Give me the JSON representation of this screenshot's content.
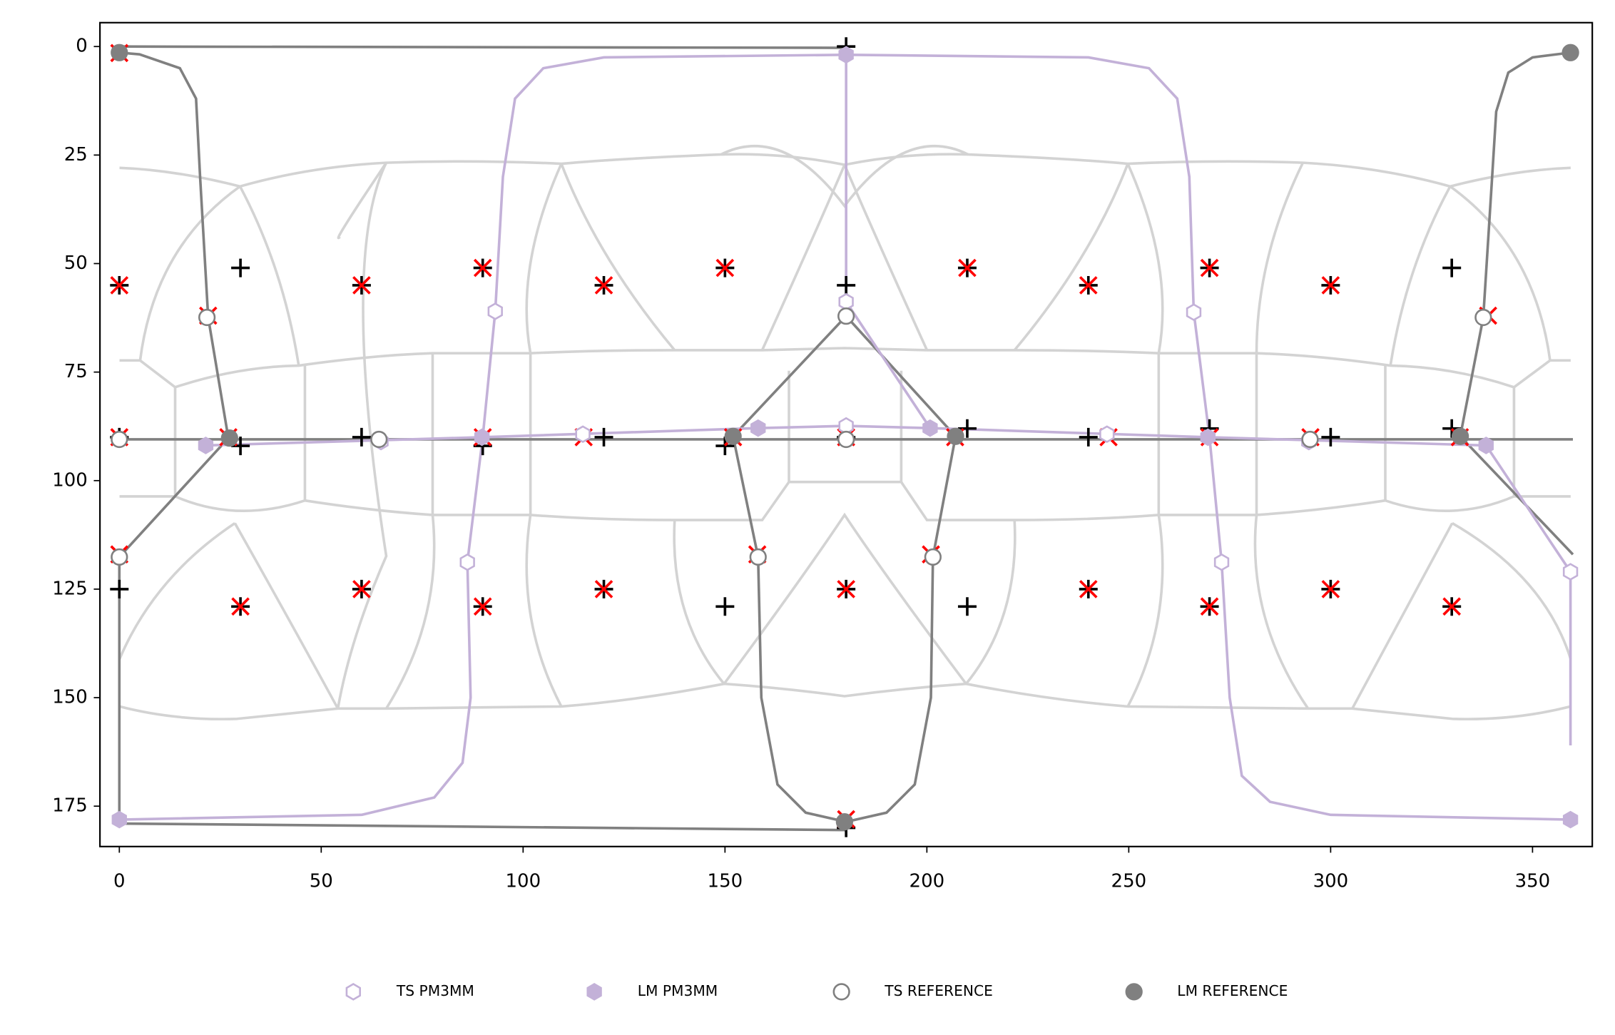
{
  "chart_data": {
    "type": "scatter",
    "xlim": [
      -4.8,
      364.8
    ],
    "ylim": [
      184.3,
      -5.5
    ],
    "xticks": [
      0,
      50,
      100,
      150,
      200,
      250,
      300,
      350
    ],
    "yticks": [
      0,
      25,
      50,
      75,
      100,
      125,
      150,
      175
    ],
    "legend": "bottom",
    "series": [
      {
        "name": "TS PM3MM",
        "color": "#c3b1d8",
        "marker": "hexagon-open",
        "x": [
          93.1,
          86.2,
          180,
          180,
          64.8,
          114.8,
          244.6,
          266.1,
          273,
          294.6,
          359.4
        ],
        "values": [
          61,
          118.8,
          58.8,
          87.4,
          91,
          89.3,
          89.3,
          61.2,
          118.8,
          91,
          121
        ]
      },
      {
        "name": "LM PM3MM",
        "color": "#c3b1d8",
        "marker": "hexagon-filled",
        "x": [
          0,
          21.4,
          89.8,
          158.2,
          180,
          200.8,
          269.6,
          338.5,
          359.4
        ],
        "values": [
          178.1,
          91.9,
          90,
          87.9,
          1.9,
          87.9,
          90,
          91.9,
          178.1
        ]
      },
      {
        "name": "TS REFERENCE",
        "color": "#808080",
        "marker": "circle-open",
        "x": [
          21.7,
          0,
          0,
          64.3,
          180,
          180,
          158.2,
          201.5,
          294.9,
          337.8
        ],
        "values": [
          62.4,
          90.5,
          117.6,
          90.5,
          62.1,
          90.5,
          117.6,
          117.6,
          90.5,
          62.4
        ]
      },
      {
        "name": "LM REFERENCE",
        "color": "#808080",
        "marker": "circle-filled",
        "x": [
          0,
          27.3,
          152,
          207.1,
          179.6,
          332.1,
          359.4
        ],
        "values": [
          1.4,
          90.2,
          89.8,
          89.8,
          178.6,
          89.8,
          1.4
        ]
      }
    ],
    "markers": [
      {
        "color": "#000000",
        "marker": "plus",
        "x": [
          0,
          30,
          60,
          90,
          120,
          150,
          180,
          210,
          240,
          270,
          300,
          330,
          0,
          30,
          60,
          90,
          120,
          150,
          180,
          210,
          240,
          270,
          300,
          330,
          0,
          30,
          60,
          90,
          120,
          150,
          180,
          210,
          240,
          270,
          300,
          330,
          180,
          180
        ],
        "values": [
          55,
          51,
          55,
          51,
          55,
          51,
          55,
          51,
          55,
          51,
          55,
          51,
          125,
          129,
          125,
          129,
          125,
          129,
          125,
          129,
          125,
          129,
          125,
          129,
          90,
          92,
          90,
          92,
          90,
          92,
          90,
          88,
          90,
          88,
          90,
          88,
          0,
          180
        ]
      },
      {
        "color": "#ff0000",
        "marker": "cross",
        "x": [
          0,
          0,
          60,
          90,
          120,
          150,
          210,
          240,
          270,
          300,
          0,
          27,
          90,
          115,
          152,
          180,
          207,
          245,
          270,
          295,
          332,
          22,
          339,
          0,
          158,
          201,
          30,
          60,
          90,
          120,
          180,
          240,
          270,
          300,
          330,
          180
        ],
        "values": [
          1.5,
          55,
          55,
          51,
          55,
          51,
          51,
          55,
          51,
          55,
          90,
          90,
          90,
          90,
          90,
          90,
          90,
          90,
          90,
          90,
          90,
          62,
          62,
          117,
          117,
          117,
          129,
          125,
          129,
          125,
          125,
          125,
          129,
          125,
          129,
          178
        ]
      }
    ],
    "curves": [
      {
        "color": "#808080",
        "x": [
          0,
          180
        ],
        "values": [
          0,
          0.3
        ]
      },
      {
        "color": "#808080",
        "x": [
          0,
          180
        ],
        "values": [
          179,
          180.5
        ]
      },
      {
        "color": "#808080",
        "x": [
          0,
          5,
          15,
          19,
          20,
          22,
          27,
          0,
          0
        ],
        "values": [
          1.4,
          1.8,
          5,
          12,
          30,
          62.4,
          90.2,
          117.6,
          178
        ]
      },
      {
        "color": "#808080",
        "x": [
          152,
          180,
          207.1,
          201.5,
          201,
          197,
          190,
          180,
          170,
          163,
          159,
          158.2,
          152
        ],
        "values": [
          89.8,
          62.1,
          89.8,
          117.6,
          150,
          170,
          176.5,
          178.6,
          176.5,
          170,
          150,
          117.6,
          89.8
        ]
      },
      {
        "color": "#808080",
        "x": [
          359.4,
          350,
          344,
          341,
          340,
          337.8,
          332.1,
          360
        ],
        "values": [
          1.4,
          2.5,
          6,
          15,
          30,
          62.4,
          89.8,
          117
        ]
      },
      {
        "color": "#808080",
        "x": [
          0,
          360
        ],
        "values": [
          90.5,
          90.5
        ]
      },
      {
        "color": "#c3b1d8",
        "x": [
          0,
          60,
          78,
          85,
          87,
          86.2,
          90,
          93.1,
          95,
          98,
          105,
          120,
          180,
          240,
          255,
          262,
          265,
          266.1,
          270,
          273,
          275,
          278,
          285,
          300,
          359.4
        ],
        "values": [
          178.1,
          177,
          173,
          165,
          150,
          118.8,
          90,
          61,
          30,
          12,
          5,
          2.5,
          1.9,
          2.5,
          5,
          12,
          30,
          61.2,
          90,
          118.8,
          150,
          168,
          174,
          177,
          178.1
        ]
      },
      {
        "color": "#c3b1d8",
        "x": [
          180,
          180,
          200.8
        ],
        "values": [
          1.9,
          58.8,
          87.9
        ]
      },
      {
        "color": "#c3b1d8",
        "x": [
          21.4,
          89.8,
          158.2,
          180,
          200.8,
          269.6,
          338.5,
          359.4,
          359.4
        ],
        "values": [
          91.9,
          90,
          87.9,
          87.4,
          87.9,
          90,
          91.9,
          121,
          161
        ]
      }
    ]
  }
}
